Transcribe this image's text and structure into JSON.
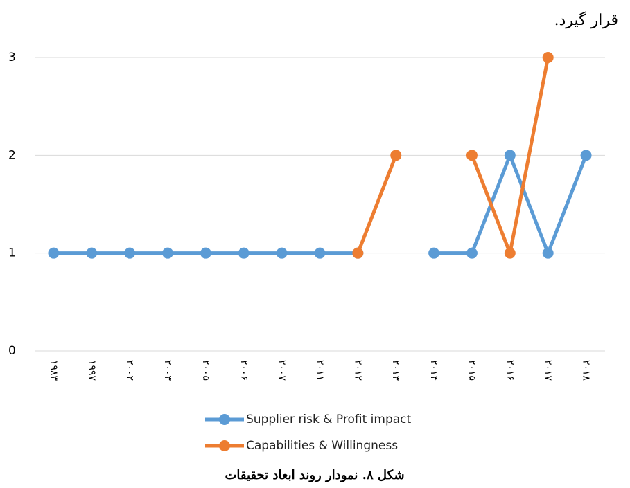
{
  "paragraph_tail": "قرار گیرد.",
  "chart_data": {
    "type": "line",
    "title": "شکل ۸. نمودار روند ابعاد تحقیقات",
    "categories": [
      "۱۹۸۳",
      "۱۹۹۷",
      "۲۰۰۲",
      "۲۰۰۳",
      "۲۰۰۵",
      "۲۰۰۶",
      "۲۰۰۷",
      "۲۰۱۱",
      "۲۰۱۲",
      "۲۰۱۳",
      "۲۰۱۴",
      "۲۰۱۵",
      "۲۰۱۶",
      "۲۰۱۷",
      "۲۰۱۸"
    ],
    "series": [
      {
        "name": "Supplier risk & Profit impact",
        "color": "#5b9bd5",
        "values": [
          1,
          1,
          1,
          1,
          1,
          1,
          1,
          1,
          1,
          null,
          1,
          1,
          2,
          1,
          2
        ]
      },
      {
        "name": "Capabilities & Willingness",
        "color": "#ed7d31",
        "values": [
          null,
          null,
          null,
          null,
          null,
          null,
          null,
          null,
          1,
          2,
          null,
          2,
          1,
          3,
          null
        ]
      }
    ],
    "ylim": [
      0,
      3
    ],
    "yticks": [
      0,
      1,
      2,
      3
    ],
    "grid": true,
    "legend": "bottom"
  }
}
